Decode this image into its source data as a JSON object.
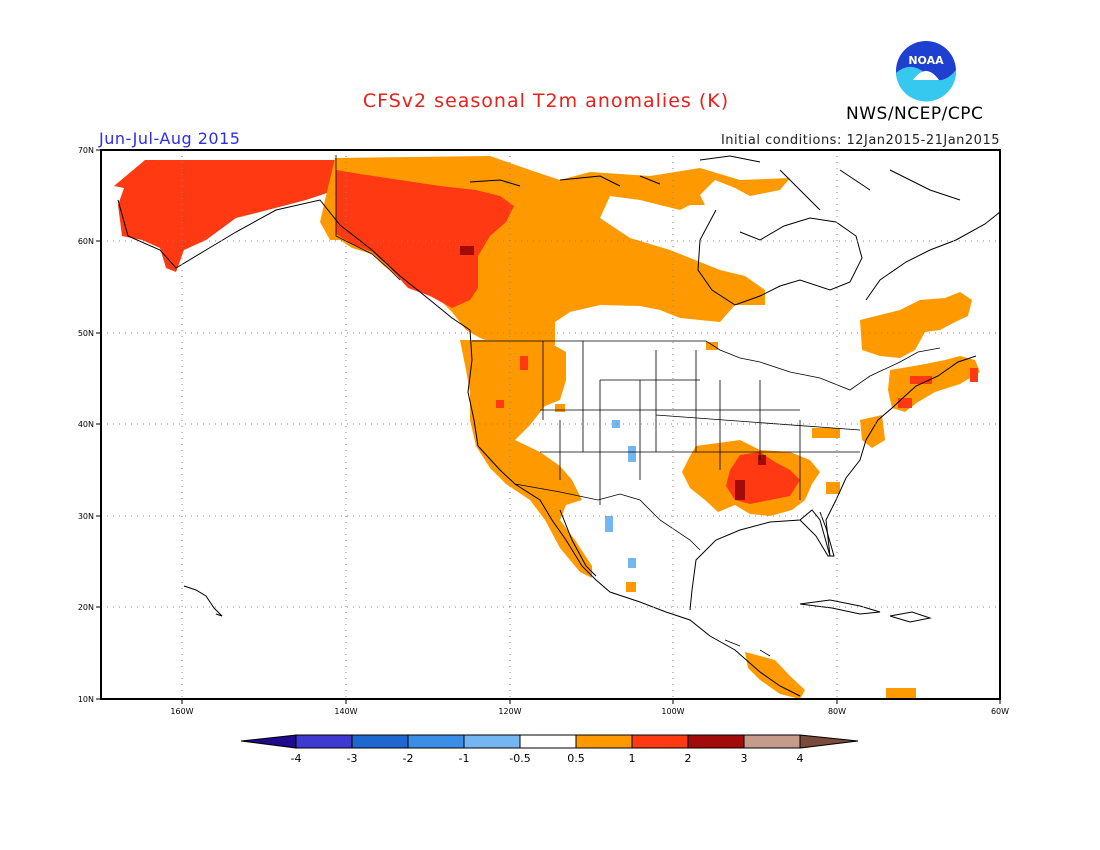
{
  "header": {
    "title": "CFSv2 seasonal T2m anomalies (K)",
    "agency": "NWS/NCEP/CPC",
    "logo_text": "NOAA",
    "season": "Jun-Jul-Aug 2015",
    "initial_conditions": "Initial conditions: 12Jan2015-21Jan2015"
  },
  "map": {
    "lat_labels": [
      "70N",
      "60N",
      "50N",
      "40N",
      "30N",
      "20N",
      "10N"
    ],
    "lon_labels": [
      "160W",
      "140W",
      "120W",
      "100W",
      "80W",
      "60W"
    ]
  },
  "legend": {
    "labels": [
      "-4",
      "-3",
      "-2",
      "-1",
      "-0.5",
      "0.5",
      "1",
      "2",
      "3",
      "4"
    ],
    "colors": [
      "#1e0a8c",
      "#3d39d1",
      "#1f66d1",
      "#3a8ee8",
      "#74b6f2",
      "#ffffff",
      "#ff9900",
      "#ff3a12",
      "#a30a0a",
      "#c59c8c",
      "#7a4a3a"
    ]
  }
}
